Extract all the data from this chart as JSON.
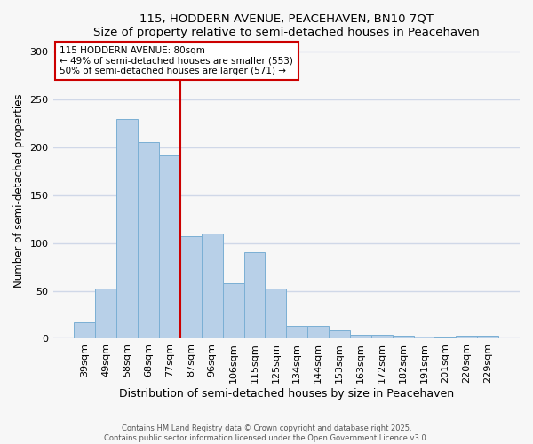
{
  "title": "115, HODDERN AVENUE, PEACEHAVEN, BN10 7QT",
  "subtitle": "Size of property relative to semi-detached houses in Peacehaven",
  "xlabel": "Distribution of semi-detached houses by size in Peacehaven",
  "ylabel": "Number of semi-detached properties",
  "categories": [
    "39sqm",
    "49sqm",
    "58sqm",
    "68sqm",
    "77sqm",
    "87sqm",
    "96sqm",
    "106sqm",
    "115sqm",
    "125sqm",
    "134sqm",
    "144sqm",
    "153sqm",
    "163sqm",
    "172sqm",
    "182sqm",
    "191sqm",
    "201sqm",
    "220sqm",
    "229sqm"
  ],
  "values": [
    17,
    52,
    229,
    205,
    191,
    107,
    110,
    58,
    90,
    52,
    13,
    13,
    9,
    4,
    4,
    3,
    2,
    1,
    3,
    3
  ],
  "bar_color": "#b8d0e8",
  "bar_edge_color": "#7bafd4",
  "vline_x": 4.5,
  "vline_color": "#cc0000",
  "annotation_title": "115 HODDERN AVENUE: 80sqm",
  "annotation_line1": "← 49% of semi-detached houses are smaller (553)",
  "annotation_line2": "50% of semi-detached houses are larger (571) →",
  "annotation_box_color": "white",
  "annotation_box_edge": "#cc0000",
  "ylim": [
    0,
    310
  ],
  "yticks": [
    0,
    50,
    100,
    150,
    200,
    250,
    300
  ],
  "footer1": "Contains HM Land Registry data © Crown copyright and database right 2025.",
  "footer2": "Contains public sector information licensed under the Open Government Licence v3.0.",
  "bg_color": "#f7f7f7",
  "grid_color": "#d0d8e8"
}
